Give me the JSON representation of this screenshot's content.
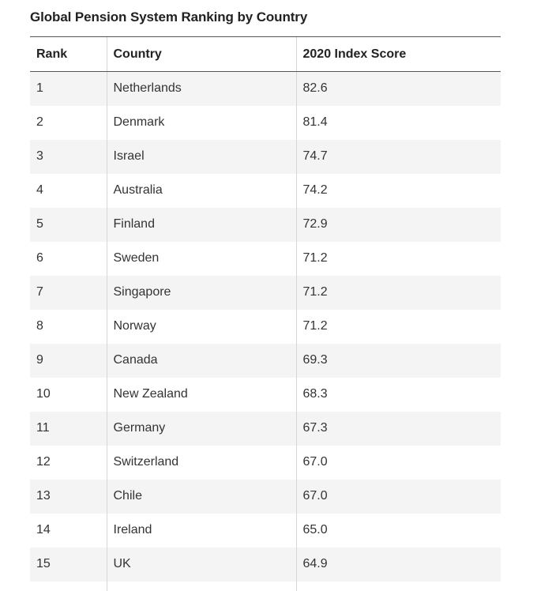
{
  "title": "Global Pension System Ranking by Country",
  "table": {
    "headers": {
      "rank": "Rank",
      "country": "Country",
      "score": "2020 Index Score"
    },
    "rows": [
      {
        "rank": "1",
        "country": "Netherlands",
        "score": "82.6"
      },
      {
        "rank": "2",
        "country": "Denmark",
        "score": "81.4"
      },
      {
        "rank": "3",
        "country": "Israel",
        "score": "74.7"
      },
      {
        "rank": "4",
        "country": "Australia",
        "score": "74.2"
      },
      {
        "rank": "5",
        "country": "Finland",
        "score": "72.9"
      },
      {
        "rank": "6",
        "country": "Sweden",
        "score": "71.2"
      },
      {
        "rank": "7",
        "country": "Singapore",
        "score": "71.2"
      },
      {
        "rank": "8",
        "country": "Norway",
        "score": "71.2"
      },
      {
        "rank": "9",
        "country": "Canada",
        "score": "69.3"
      },
      {
        "rank": "10",
        "country": "New Zealand",
        "score": "68.3"
      },
      {
        "rank": "11",
        "country": "Germany",
        "score": "67.3"
      },
      {
        "rank": "12",
        "country": "Switzerland",
        "score": "67.0"
      },
      {
        "rank": "13",
        "country": "Chile",
        "score": "67.0"
      },
      {
        "rank": "14",
        "country": "Ireland",
        "score": "65.0"
      },
      {
        "rank": "15",
        "country": "UK",
        "score": "64.9"
      }
    ]
  },
  "colors": {
    "stripe": "#f4f4f4",
    "header_rule": "#555555",
    "column_divider": "#d6d6d6"
  }
}
